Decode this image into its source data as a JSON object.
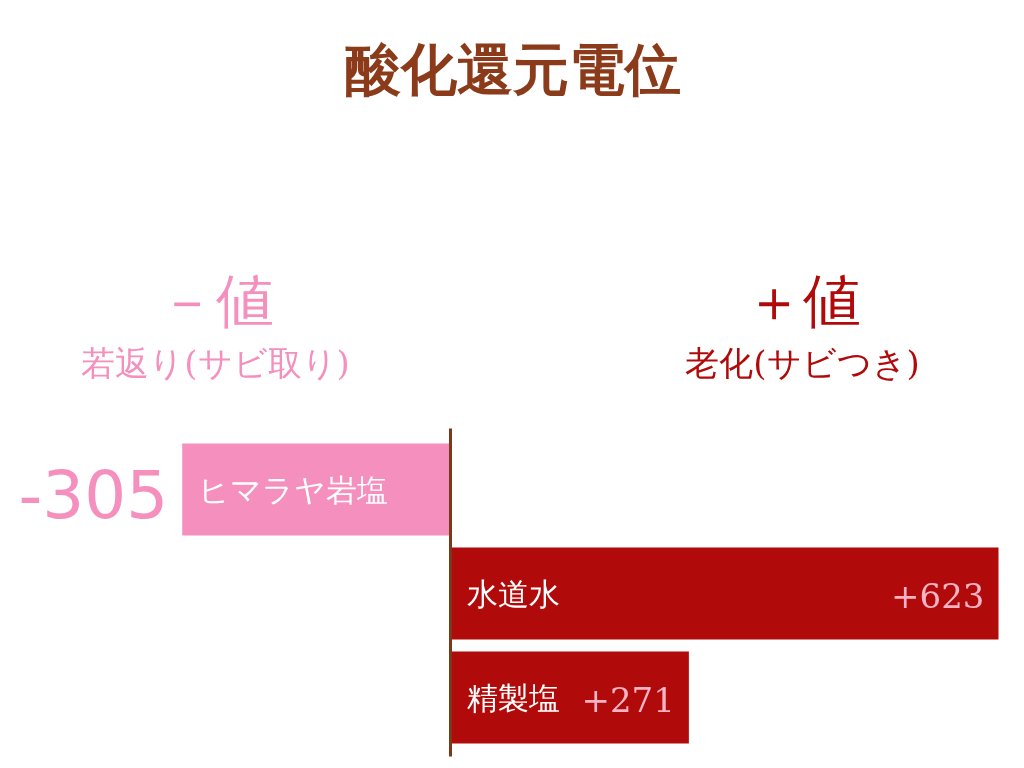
{
  "chart_data": {
    "type": "bar",
    "orientation": "horizontal",
    "title": "酸化還元電位",
    "categories": [
      "ヒマラヤ岩塩",
      "水道水",
      "精製塩"
    ],
    "values": [
      -305,
      623,
      271
    ],
    "colors": [
      "#f48fbe",
      "#b00a0a",
      "#b00a0a"
    ],
    "value_labels": [
      "-305",
      "+623",
      "+271"
    ],
    "annotations": [
      "－値",
      "若返り(サビ取り)",
      "＋値",
      "老化(サビつき)"
    ],
    "tick_labels": false
  }
}
